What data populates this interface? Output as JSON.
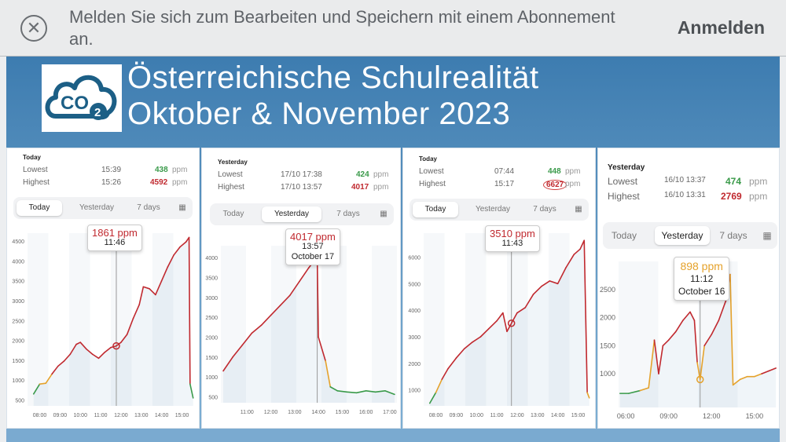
{
  "banner": {
    "message": "Melden Sie sich zum Bearbeiten und Speichern mit einem Abonnement an.",
    "login_label": "Anmelden",
    "close_icon": "close-icon"
  },
  "slide": {
    "logo_text": "CO",
    "logo_sub": "2",
    "title_line1": "Österreichische Schulrealität",
    "title_line2": "Oktober & November 2023"
  },
  "panels": [
    {
      "period": "Today",
      "lowest_label": "Lowest",
      "lowest_time": "15:39",
      "lowest_value": "438",
      "unit": "ppm",
      "highest_label": "Highest",
      "highest_time": "15:26",
      "highest_value": "4592",
      "tabs": [
        "Today",
        "Yesterday",
        "7 days"
      ],
      "selected_tab": 0,
      "tooltip": {
        "value": "1861 ppm",
        "time": "11:46"
      }
    },
    {
      "period": "Yesterday",
      "lowest_label": "Lowest",
      "lowest_time": "17/10 17:38",
      "lowest_value": "424",
      "unit": "ppm",
      "highest_label": "Highest",
      "highest_time": "17/10 13:57",
      "highest_value": "4017",
      "tabs": [
        "Today",
        "Yesterday",
        "7 days"
      ],
      "selected_tab": 1,
      "tooltip": {
        "value": "4017 ppm",
        "time": "13:57",
        "date": "October 17"
      }
    },
    {
      "period": "Today",
      "lowest_label": "Lowest",
      "lowest_time": "07:44",
      "lowest_value": "448",
      "unit": "ppm",
      "highest_label": "Highest",
      "highest_time": "15:17",
      "highest_value": "6627",
      "tabs": [
        "Today",
        "Yesterday",
        "7 days"
      ],
      "selected_tab": 0,
      "tooltip": {
        "value": "3510 ppm",
        "time": "11:43"
      }
    },
    {
      "period": "Yesterday",
      "lowest_label": "Lowest",
      "lowest_time": "16/10 13:37",
      "lowest_value": "474",
      "unit": "ppm",
      "highest_label": "Highest",
      "highest_time": "16/10 13:31",
      "highest_value": "2769",
      "tabs": [
        "Today",
        "Yesterday",
        "7 days"
      ],
      "selected_tab": 1,
      "tooltip": {
        "value": "898 ppm",
        "time": "11:12",
        "date": "October 16"
      }
    }
  ],
  "colors": {
    "high": "#c0292f",
    "low": "#3a9a4a",
    "mid": "#e5a22b",
    "accent": "#3d7cb0"
  },
  "chart_data": [
    {
      "type": "line",
      "x_ticks": [
        "08:00",
        "09:00",
        "10:00",
        "11:00",
        "12:00",
        "13:00",
        "14:00",
        "15:00"
      ],
      "y_ticks": [
        500,
        1000,
        1500,
        2000,
        2500,
        3000,
        3500,
        4000,
        4500
      ],
      "ylim": [
        350,
        4700
      ],
      "x": [
        7.7,
        8.0,
        8.3,
        8.6,
        8.9,
        9.2,
        9.5,
        9.8,
        10.0,
        10.3,
        10.6,
        10.9,
        11.2,
        11.5,
        11.77,
        12.0,
        12.3,
        12.6,
        12.9,
        13.1,
        13.4,
        13.7,
        14.0,
        14.3,
        14.6,
        14.9,
        15.2,
        15.35,
        15.4,
        15.55
      ],
      "values": [
        650,
        900,
        920,
        1150,
        1350,
        1480,
        1650,
        1900,
        1950,
        1780,
        1650,
        1550,
        1700,
        1820,
        1861,
        1950,
        2150,
        2550,
        2900,
        3350,
        3300,
        3150,
        3500,
        3850,
        4150,
        4350,
        4480,
        4592,
        900,
        550
      ]
    },
    {
      "type": "line",
      "x_ticks": [
        "11:00",
        "12:00",
        "13:00",
        "14:00",
        "15:00",
        "16:00",
        "17:00"
      ],
      "y_ticks": [
        500,
        1000,
        1500,
        2000,
        2500,
        3000,
        3500,
        4000
      ],
      "ylim": [
        350,
        4300
      ],
      "x": [
        10.0,
        10.4,
        10.8,
        11.2,
        11.6,
        12.0,
        12.4,
        12.8,
        13.2,
        13.6,
        13.95,
        14.0,
        14.3,
        14.5,
        14.8,
        15.2,
        15.6,
        16.0,
        16.4,
        16.8,
        17.2
      ],
      "values": [
        1150,
        1500,
        1800,
        2100,
        2300,
        2550,
        2800,
        3050,
        3400,
        3750,
        4017,
        2000,
        1400,
        750,
        650,
        620,
        600,
        650,
        620,
        650,
        560
      ]
    },
    {
      "type": "line",
      "x_ticks": [
        "08:00",
        "09:00",
        "10:00",
        "11:00",
        "12:00",
        "13:00",
        "14:00",
        "15:00"
      ],
      "y_ticks": [
        1000,
        2000,
        3000,
        4000,
        5000,
        6000
      ],
      "ylim": [
        400,
        6900
      ],
      "x": [
        7.7,
        8.0,
        8.3,
        8.6,
        9.0,
        9.4,
        9.8,
        10.2,
        10.6,
        11.0,
        11.3,
        11.5,
        11.72,
        12.0,
        12.4,
        12.8,
        13.2,
        13.6,
        14.0,
        14.4,
        14.8,
        15.1,
        15.3,
        15.45,
        15.55
      ],
      "values": [
        500,
        900,
        1400,
        1800,
        2200,
        2550,
        2800,
        3000,
        3300,
        3600,
        3900,
        3200,
        3510,
        3900,
        4100,
        4600,
        4900,
        5100,
        5000,
        5600,
        6100,
        6300,
        6627,
        900,
        700
      ]
    },
    {
      "type": "line",
      "x_ticks": [
        "06:00",
        "09:00",
        "12:00",
        "15:00"
      ],
      "y_ticks": [
        1000,
        1500,
        2000,
        2500
      ],
      "ylim": [
        400,
        3000
      ],
      "x": [
        5.6,
        6.2,
        7.0,
        7.6,
        8.0,
        8.3,
        8.6,
        9.0,
        9.5,
        10.0,
        10.5,
        10.8,
        11.0,
        11.2,
        11.5,
        12.0,
        12.5,
        13.0,
        13.3,
        13.5,
        14.0,
        14.5,
        15.0,
        15.5,
        16.0,
        16.5
      ],
      "values": [
        650,
        650,
        700,
        750,
        1600,
        1000,
        1500,
        1600,
        1750,
        1950,
        2100,
        1950,
        1200,
        898,
        1500,
        1700,
        1950,
        2300,
        2769,
        800,
        900,
        950,
        950,
        1000,
        1050,
        1100
      ]
    }
  ]
}
